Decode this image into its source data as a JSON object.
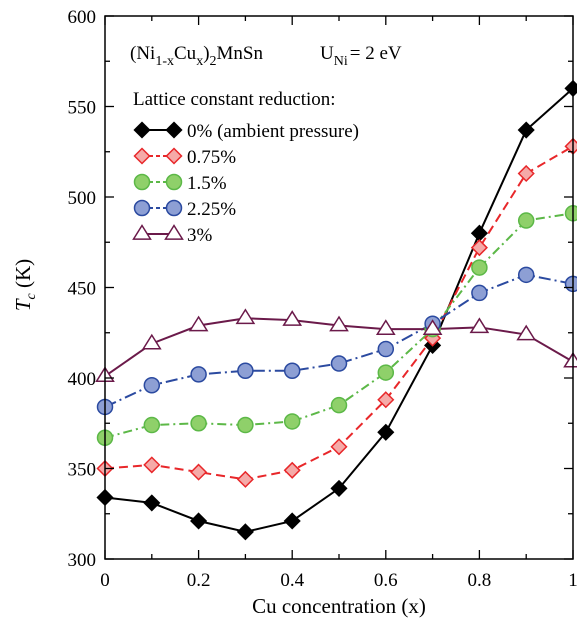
{
  "chart_data": {
    "type": "line",
    "xlabel": "Cu concentration (x)",
    "ylabel": {
      "main": "T",
      "sub": "c",
      "unit": " (K)"
    },
    "xlim": [
      0,
      1
    ],
    "ylim": [
      300,
      600
    ],
    "x_ticks": [
      0,
      0.2,
      0.4,
      0.6,
      0.8,
      1
    ],
    "x_tick_labels": [
      "0",
      "0.2",
      "0.4",
      "0.6",
      "0.8",
      "1"
    ],
    "y_ticks": [
      300,
      350,
      400,
      450,
      500,
      550,
      600
    ],
    "y_tick_labels": [
      "300",
      "350",
      "400",
      "450",
      "500",
      "550",
      "600"
    ],
    "grid": false,
    "legend_placement": "top-left",
    "annotation": {
      "formula_parts": [
        "(Ni",
        "1-x",
        "Cu",
        "x",
        ")",
        "2",
        "MnSn"
      ],
      "u_label": "U",
      "u_sub": "Ni",
      "u_value": "= 2 eV"
    },
    "legend_title": "Lattice constant reduction:",
    "x": [
      0,
      0.1,
      0.2,
      0.3,
      0.4,
      0.5,
      0.6,
      0.7,
      0.8,
      0.9,
      1.0
    ],
    "series": [
      {
        "name": "0% (ambient pressure)",
        "values": [
          334,
          331,
          321,
          315,
          321,
          339,
          370,
          418,
          480,
          537,
          560
        ],
        "color": "#000000",
        "fill": "#000000",
        "marker": "diamond",
        "dash": "solid"
      },
      {
        "name": "0.75%",
        "values": [
          350,
          352,
          348,
          344,
          349,
          362,
          388,
          422,
          472,
          513,
          528
        ],
        "color": "#e8272a",
        "fill": "#f5aaa8",
        "marker": "diamond",
        "dash": "dashed"
      },
      {
        "name": "1.5%",
        "values": [
          367,
          374,
          375,
          374,
          376,
          385,
          403,
          427,
          461,
          487,
          491
        ],
        "color": "#5cb847",
        "fill": "#8fd06a",
        "marker": "circle",
        "dash": "dashdot"
      },
      {
        "name": "2.25%",
        "values": [
          384,
          396,
          402,
          404,
          404,
          408,
          416,
          430,
          447,
          457,
          452
        ],
        "color": "#2b4aa0",
        "fill": "#8d9fd4",
        "marker": "circle",
        "dash": "longdashdot"
      },
      {
        "name": "3%",
        "values": [
          401,
          419,
          429,
          433,
          432,
          429,
          427,
          427,
          428,
          424,
          409
        ],
        "color": "#6b1a4a",
        "fill": "#ffffff",
        "marker": "triangle",
        "dash": "solid"
      }
    ]
  }
}
